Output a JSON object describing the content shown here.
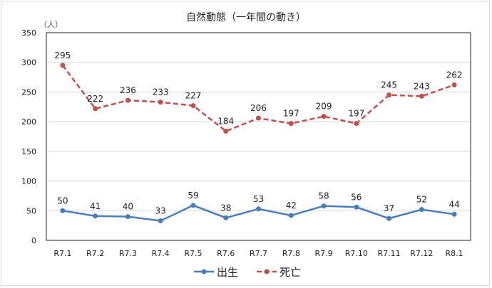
{
  "chart_data": {
    "type": "line",
    "title": "自然動態（一年間の動き）",
    "ylabel": "（人）",
    "xlabel": "",
    "ylim": [
      0,
      350
    ],
    "yticks": [
      0,
      50,
      100,
      150,
      200,
      250,
      300,
      350
    ],
    "grid": true,
    "legend_position": "bottom",
    "categories": [
      "R7.1",
      "R7.2",
      "R7.3",
      "R7.4",
      "R7.5",
      "R7.6",
      "R7.7",
      "R7.8",
      "R7.9",
      "R7.10",
      "R7.11",
      "R7.12",
      "R8.1"
    ],
    "series": [
      {
        "name": "出生",
        "color": "#4a7ebb",
        "style": "solid",
        "values": [
          50,
          41,
          40,
          33,
          59,
          38,
          53,
          42,
          58,
          56,
          37,
          52,
          44
        ]
      },
      {
        "name": "死亡",
        "color": "#c0504d",
        "style": "dashed",
        "values": [
          295,
          222,
          236,
          233,
          227,
          184,
          206,
          197,
          209,
          197,
          245,
          243,
          262
        ]
      }
    ]
  }
}
